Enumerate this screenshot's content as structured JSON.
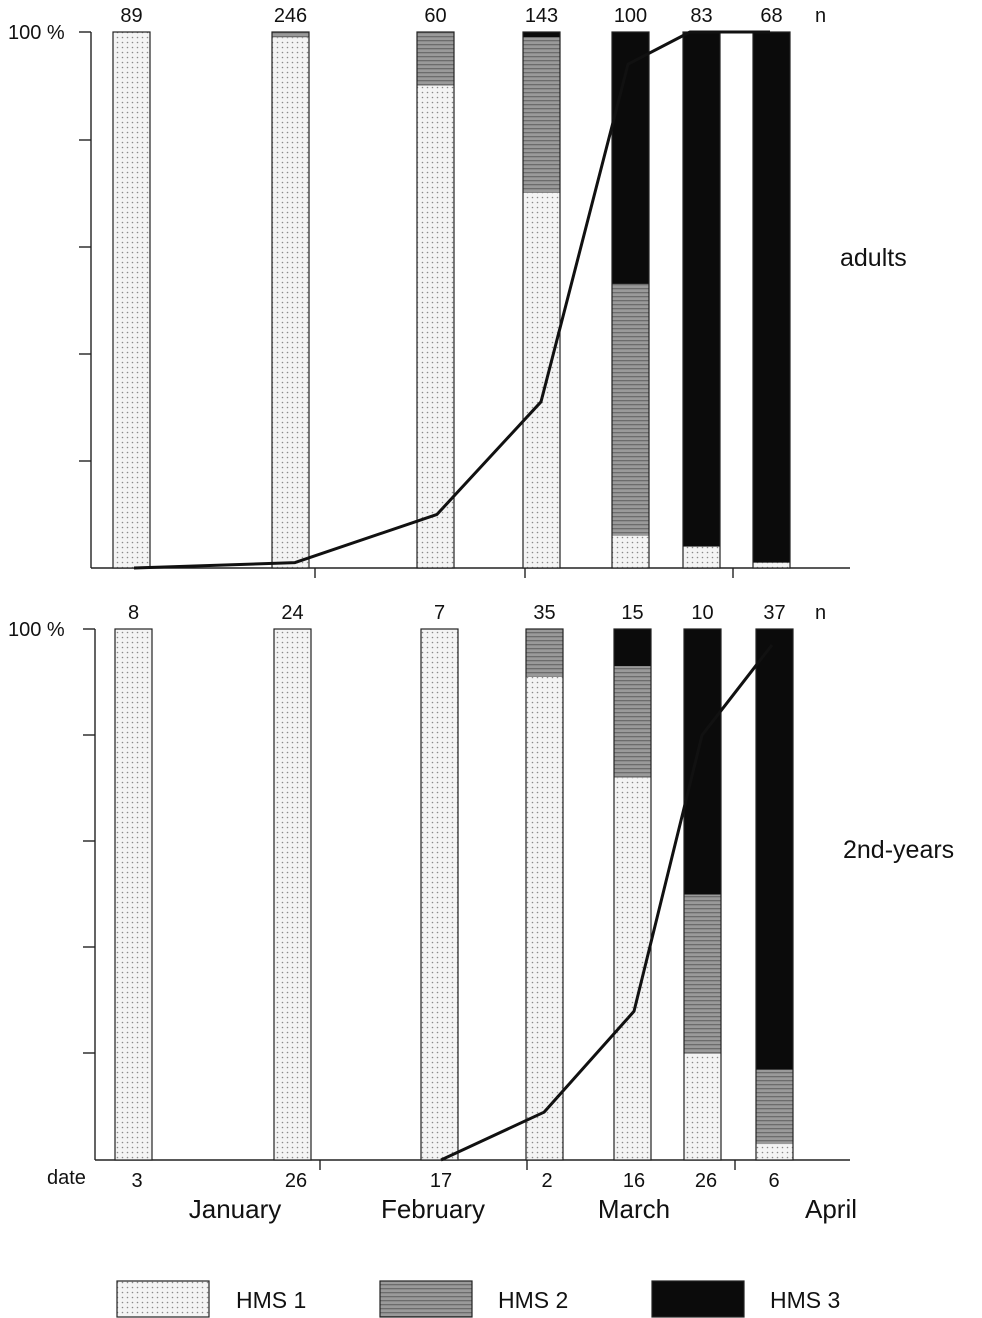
{
  "chart_data": {
    "type": "bar",
    "stacked": true,
    "percent_scale": true,
    "y_top_label": "100 %",
    "n_label": "n",
    "x_title": "date",
    "dates": [
      "3",
      "26",
      "17",
      "2",
      "16",
      "26",
      "6"
    ],
    "months": [
      "January",
      "February",
      "March",
      "April"
    ],
    "ylim": [
      0,
      100
    ],
    "legend": [
      {
        "name": "HMS 1",
        "color": "#e9e9e9"
      },
      {
        "name": "HMS 2",
        "color": "#8a8a8a"
      },
      {
        "name": "HMS 3",
        "color": "#0b0b0b"
      }
    ],
    "panels": [
      {
        "label": "adults",
        "n": [
          "89",
          "246",
          "60",
          "143",
          "100",
          "83",
          "68"
        ],
        "series": [
          {
            "name": "HMS 1",
            "values": [
              100,
              99,
              90,
              70,
              6,
              4,
              1
            ]
          },
          {
            "name": "HMS 2",
            "values": [
              0,
              1,
              10,
              29,
              47,
              0,
              0
            ]
          },
          {
            "name": "HMS 3",
            "values": [
              0,
              0,
              0,
              1,
              47,
              96,
              99
            ]
          }
        ],
        "line": [
          0,
          1,
          10,
          31,
          94,
          100,
          100
        ]
      },
      {
        "label": "2nd-years",
        "n": [
          "8",
          "24",
          "7",
          "35",
          "15",
          "10",
          "37"
        ],
        "series": [
          {
            "name": "HMS 1",
            "values": [
              100,
              100,
              100,
              91,
              72,
              20,
              3
            ]
          },
          {
            "name": "HMS 2",
            "values": [
              0,
              0,
              0,
              9,
              21,
              30,
              14
            ]
          },
          {
            "name": "HMS 3",
            "values": [
              0,
              0,
              0,
              0,
              7,
              50,
              83
            ]
          }
        ],
        "line": [
          null,
          null,
          0,
          9,
          28,
          80,
          97
        ]
      }
    ]
  }
}
